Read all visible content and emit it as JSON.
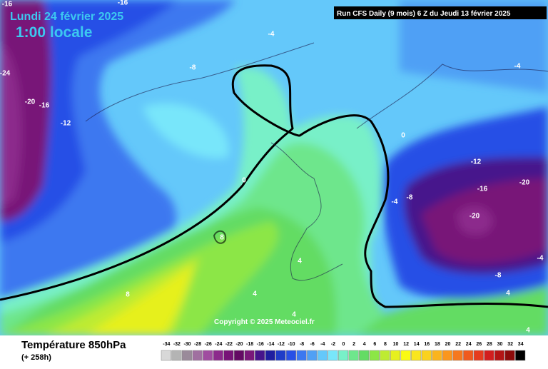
{
  "header": {
    "date": "Lundi 24 février 2025",
    "time": "1:00 locale",
    "run": "Run CFS Daily (9 mois) 6 Z du Jeudi 13 février 2025"
  },
  "map": {
    "contour_labels": [
      -16,
      -16,
      -24,
      -20,
      -16,
      -12,
      -8,
      -4,
      -4,
      0,
      0,
      -12,
      -16,
      -20,
      -20,
      -8,
      -4,
      -4,
      -8,
      4,
      4,
      4,
      4,
      8,
      8,
      4
    ]
  },
  "copyright": "Copyright © 2025 Meteociel.fr",
  "legend": {
    "title": "Température 850hPa",
    "lead": "(+ 258h)",
    "scale": [
      {
        "value": -34,
        "color": "#d8d8d8"
      },
      {
        "value": -32,
        "color": "#b4b4b4"
      },
      {
        "value": -30,
        "color": "#9a8a9a"
      },
      {
        "value": -28,
        "color": "#a070a0"
      },
      {
        "value": -26,
        "color": "#a04ca0"
      },
      {
        "value": -24,
        "color": "#8c2a8c"
      },
      {
        "value": -22,
        "color": "#781478"
      },
      {
        "value": -20,
        "color": "#640a64"
      },
      {
        "value": -18,
        "color": "#7a187a"
      },
      {
        "value": -16,
        "color": "#46148c"
      },
      {
        "value": -14,
        "color": "#1e1ea0"
      },
      {
        "value": -12,
        "color": "#1e3cc8"
      },
      {
        "value": -10,
        "color": "#2850e6"
      },
      {
        "value": -8,
        "color": "#3c78f0"
      },
      {
        "value": -6,
        "color": "#50a0f5"
      },
      {
        "value": -4,
        "color": "#64c8fa"
      },
      {
        "value": -2,
        "color": "#78e6fa"
      },
      {
        "value": 0,
        "color": "#78f0c8"
      },
      {
        "value": 2,
        "color": "#6ee68c"
      },
      {
        "value": 4,
        "color": "#64dc64"
      },
      {
        "value": 6,
        "color": "#8ce646"
      },
      {
        "value": 8,
        "color": "#beeb32"
      },
      {
        "value": 10,
        "color": "#e6f01e"
      },
      {
        "value": 12,
        "color": "#fafa14"
      },
      {
        "value": 14,
        "color": "#fae61e"
      },
      {
        "value": 16,
        "color": "#fad21e"
      },
      {
        "value": 18,
        "color": "#fab41e"
      },
      {
        "value": 20,
        "color": "#fa961e"
      },
      {
        "value": 22,
        "color": "#f5781e"
      },
      {
        "value": 24,
        "color": "#f05a1e"
      },
      {
        "value": 26,
        "color": "#e63c1e"
      },
      {
        "value": 28,
        "color": "#d21e1e"
      },
      {
        "value": 30,
        "color": "#b41414"
      },
      {
        "value": 32,
        "color": "#8c0a0a"
      },
      {
        "value": 34,
        "color": "#000000"
      }
    ]
  }
}
